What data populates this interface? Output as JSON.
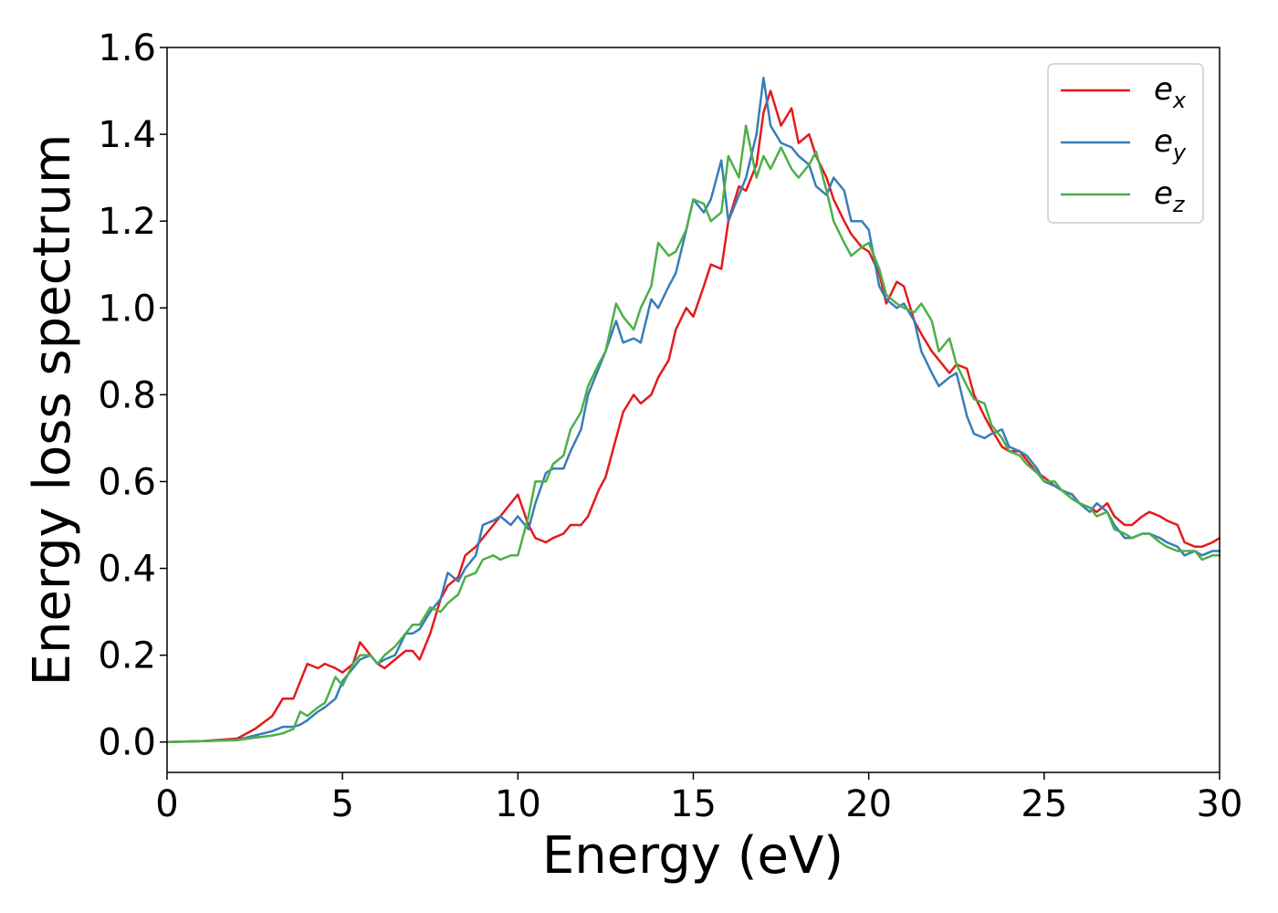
{
  "chart_data": {
    "type": "line",
    "xlabel": "Energy (eV)",
    "ylabel": "Energy loss spectrum",
    "xlim": [
      0,
      30
    ],
    "ylim": [
      -0.07,
      1.6
    ],
    "xticks": [
      0,
      5,
      10,
      15,
      20,
      25,
      30
    ],
    "yticks": [
      0.0,
      0.2,
      0.4,
      0.6,
      0.8,
      1.0,
      1.2,
      1.4,
      1.6
    ],
    "grid": false,
    "legend_position": "top-right",
    "series": [
      {
        "name": "x",
        "legend_main": "e",
        "legend_sub": "x",
        "color": "#e41a1c",
        "x": [
          0,
          1,
          2,
          2.5,
          3,
          3.3,
          3.6,
          3.8,
          4.0,
          4.3,
          4.5,
          4.8,
          5.0,
          5.3,
          5.5,
          5.8,
          6.0,
          6.2,
          6.5,
          6.8,
          7.0,
          7.2,
          7.5,
          7.8,
          8.0,
          8.3,
          8.5,
          8.8,
          9.0,
          9.3,
          9.5,
          9.8,
          10.0,
          10.3,
          10.5,
          10.8,
          11.0,
          11.3,
          11.5,
          11.8,
          12.0,
          12.3,
          12.5,
          12.8,
          13.0,
          13.3,
          13.5,
          13.8,
          14.0,
          14.3,
          14.5,
          14.8,
          15.0,
          15.3,
          15.5,
          15.8,
          16.0,
          16.3,
          16.5,
          16.8,
          17.0,
          17.2,
          17.5,
          17.8,
          18.0,
          18.3,
          18.5,
          18.8,
          19.0,
          19.3,
          19.5,
          19.8,
          20.0,
          20.3,
          20.5,
          20.8,
          21.0,
          21.3,
          21.5,
          21.8,
          22.0,
          22.3,
          22.5,
          22.8,
          23.0,
          23.3,
          23.5,
          23.8,
          24.0,
          24.3,
          24.5,
          24.8,
          25.0,
          25.3,
          25.5,
          25.8,
          26.0,
          26.3,
          26.5,
          26.8,
          27.0,
          27.3,
          27.5,
          27.8,
          28.0,
          28.3,
          28.5,
          28.8,
          29.0,
          29.3,
          29.5,
          29.8,
          30.0
        ],
        "y": [
          0,
          0.002,
          0.008,
          0.03,
          0.06,
          0.1,
          0.1,
          0.14,
          0.18,
          0.17,
          0.18,
          0.17,
          0.16,
          0.18,
          0.23,
          0.2,
          0.18,
          0.17,
          0.19,
          0.21,
          0.21,
          0.19,
          0.25,
          0.33,
          0.36,
          0.38,
          0.43,
          0.45,
          0.47,
          0.5,
          0.52,
          0.55,
          0.57,
          0.5,
          0.47,
          0.46,
          0.47,
          0.48,
          0.5,
          0.5,
          0.52,
          0.58,
          0.61,
          0.7,
          0.76,
          0.8,
          0.78,
          0.8,
          0.84,
          0.88,
          0.95,
          1.0,
          0.98,
          1.05,
          1.1,
          1.09,
          1.2,
          1.28,
          1.27,
          1.33,
          1.45,
          1.5,
          1.42,
          1.46,
          1.38,
          1.4,
          1.35,
          1.3,
          1.25,
          1.2,
          1.17,
          1.14,
          1.13,
          1.08,
          1.01,
          1.06,
          1.05,
          0.97,
          0.94,
          0.9,
          0.88,
          0.85,
          0.87,
          0.86,
          0.8,
          0.75,
          0.72,
          0.68,
          0.67,
          0.67,
          0.65,
          0.62,
          0.61,
          0.59,
          0.58,
          0.57,
          0.55,
          0.54,
          0.53,
          0.55,
          0.52,
          0.5,
          0.5,
          0.52,
          0.53,
          0.52,
          0.51,
          0.5,
          0.46,
          0.45,
          0.45,
          0.46,
          0.47
        ]
      },
      {
        "name": "y",
        "legend_main": "e",
        "legend_sub": "y",
        "color": "#377eb8",
        "x": [
          0,
          1,
          2,
          2.5,
          3,
          3.3,
          3.6,
          3.8,
          4.0,
          4.3,
          4.5,
          4.8,
          5.0,
          5.3,
          5.5,
          5.8,
          6.0,
          6.2,
          6.5,
          6.8,
          7.0,
          7.2,
          7.5,
          7.8,
          8.0,
          8.3,
          8.5,
          8.8,
          9.0,
          9.3,
          9.5,
          9.8,
          10.0,
          10.3,
          10.5,
          10.8,
          11.0,
          11.3,
          11.5,
          11.8,
          12.0,
          12.3,
          12.5,
          12.8,
          13.0,
          13.3,
          13.5,
          13.8,
          14.0,
          14.3,
          14.5,
          14.8,
          15.0,
          15.3,
          15.5,
          15.8,
          16.0,
          16.3,
          16.5,
          16.8,
          17.0,
          17.2,
          17.5,
          17.8,
          18.0,
          18.3,
          18.5,
          18.8,
          19.0,
          19.3,
          19.5,
          19.8,
          20.0,
          20.3,
          20.5,
          20.8,
          21.0,
          21.3,
          21.5,
          21.8,
          22.0,
          22.3,
          22.5,
          22.8,
          23.0,
          23.3,
          23.5,
          23.8,
          24.0,
          24.3,
          24.5,
          24.8,
          25.0,
          25.3,
          25.5,
          25.8,
          26.0,
          26.3,
          26.5,
          26.8,
          27.0,
          27.3,
          27.5,
          27.8,
          28.0,
          28.3,
          28.5,
          28.8,
          29.0,
          29.3,
          29.5,
          29.8,
          30.0
        ],
        "y": [
          0,
          0.002,
          0.005,
          0.015,
          0.025,
          0.035,
          0.035,
          0.04,
          0.05,
          0.07,
          0.08,
          0.1,
          0.14,
          0.17,
          0.19,
          0.2,
          0.18,
          0.19,
          0.2,
          0.25,
          0.25,
          0.26,
          0.3,
          0.33,
          0.39,
          0.37,
          0.4,
          0.43,
          0.5,
          0.51,
          0.52,
          0.5,
          0.52,
          0.49,
          0.55,
          0.62,
          0.63,
          0.63,
          0.67,
          0.72,
          0.8,
          0.86,
          0.9,
          0.97,
          0.92,
          0.93,
          0.92,
          1.02,
          1.0,
          1.05,
          1.08,
          1.18,
          1.25,
          1.22,
          1.25,
          1.34,
          1.2,
          1.26,
          1.3,
          1.4,
          1.53,
          1.42,
          1.38,
          1.37,
          1.35,
          1.33,
          1.28,
          1.26,
          1.3,
          1.27,
          1.2,
          1.2,
          1.18,
          1.05,
          1.02,
          1.0,
          1.01,
          0.97,
          0.9,
          0.85,
          0.82,
          0.84,
          0.85,
          0.75,
          0.71,
          0.7,
          0.71,
          0.72,
          0.68,
          0.67,
          0.66,
          0.63,
          0.6,
          0.59,
          0.58,
          0.57,
          0.55,
          0.53,
          0.55,
          0.53,
          0.5,
          0.47,
          0.47,
          0.48,
          0.48,
          0.47,
          0.46,
          0.45,
          0.43,
          0.44,
          0.43,
          0.44,
          0.44
        ]
      },
      {
        "name": "z",
        "legend_main": "e",
        "legend_sub": "z",
        "color": "#4daf4a",
        "x": [
          0,
          1,
          2,
          2.5,
          3,
          3.3,
          3.6,
          3.8,
          4.0,
          4.3,
          4.5,
          4.8,
          5.0,
          5.3,
          5.5,
          5.8,
          6.0,
          6.2,
          6.5,
          6.8,
          7.0,
          7.2,
          7.5,
          7.8,
          8.0,
          8.3,
          8.5,
          8.8,
          9.0,
          9.3,
          9.5,
          9.8,
          10.0,
          10.3,
          10.5,
          10.8,
          11.0,
          11.3,
          11.5,
          11.8,
          12.0,
          12.3,
          12.5,
          12.8,
          13.0,
          13.3,
          13.5,
          13.8,
          14.0,
          14.3,
          14.5,
          14.8,
          15.0,
          15.3,
          15.5,
          15.8,
          16.0,
          16.3,
          16.5,
          16.8,
          17.0,
          17.2,
          17.5,
          17.8,
          18.0,
          18.3,
          18.5,
          18.8,
          19.0,
          19.3,
          19.5,
          19.8,
          20.0,
          20.3,
          20.5,
          20.8,
          21.0,
          21.3,
          21.5,
          21.8,
          22.0,
          22.3,
          22.5,
          22.8,
          23.0,
          23.3,
          23.5,
          23.8,
          24.0,
          24.3,
          24.5,
          24.8,
          25.0,
          25.3,
          25.5,
          25.8,
          26.0,
          26.3,
          26.5,
          26.8,
          27.0,
          27.3,
          27.5,
          27.8,
          28.0,
          28.3,
          28.5,
          28.8,
          29.0,
          29.3,
          29.5,
          29.8,
          30.0
        ],
        "y": [
          0,
          0.002,
          0.004,
          0.01,
          0.015,
          0.02,
          0.03,
          0.07,
          0.06,
          0.08,
          0.09,
          0.15,
          0.13,
          0.18,
          0.2,
          0.2,
          0.18,
          0.2,
          0.22,
          0.25,
          0.27,
          0.27,
          0.31,
          0.3,
          0.32,
          0.34,
          0.38,
          0.39,
          0.42,
          0.43,
          0.42,
          0.43,
          0.43,
          0.52,
          0.6,
          0.6,
          0.64,
          0.66,
          0.72,
          0.76,
          0.82,
          0.87,
          0.9,
          1.01,
          0.98,
          0.95,
          1.0,
          1.05,
          1.15,
          1.12,
          1.13,
          1.18,
          1.25,
          1.24,
          1.2,
          1.22,
          1.35,
          1.3,
          1.42,
          1.3,
          1.35,
          1.32,
          1.37,
          1.32,
          1.3,
          1.33,
          1.36,
          1.27,
          1.2,
          1.15,
          1.12,
          1.14,
          1.15,
          1.09,
          1.03,
          1.01,
          1.0,
          0.99,
          1.01,
          0.97,
          0.9,
          0.93,
          0.87,
          0.82,
          0.79,
          0.78,
          0.73,
          0.7,
          0.67,
          0.66,
          0.64,
          0.62,
          0.6,
          0.6,
          0.58,
          0.56,
          0.55,
          0.54,
          0.52,
          0.53,
          0.49,
          0.48,
          0.47,
          0.48,
          0.48,
          0.46,
          0.45,
          0.44,
          0.44,
          0.44,
          0.42,
          0.43,
          0.43
        ]
      }
    ]
  }
}
